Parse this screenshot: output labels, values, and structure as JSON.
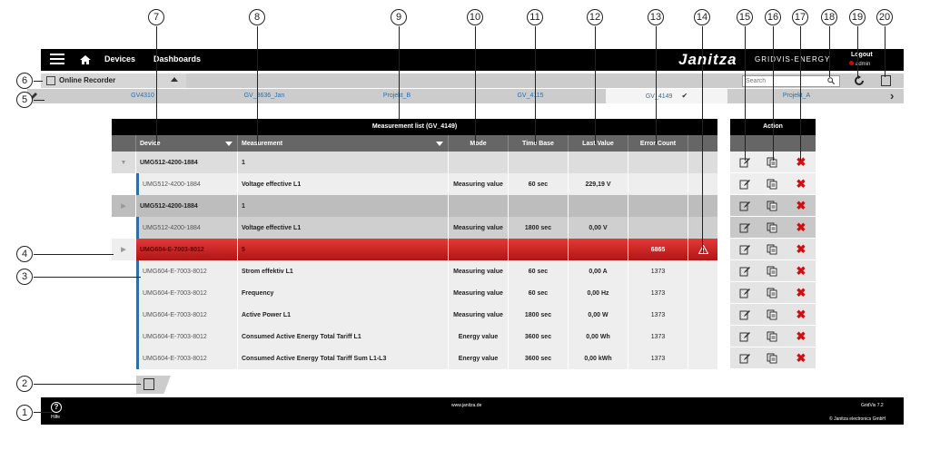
{
  "header": {
    "nav": [
      "Devices",
      "Dashboards"
    ],
    "brand": "Janitza",
    "product": "GRIDVIS-ENERGY",
    "logout": "Logout",
    "user": "admin"
  },
  "recorder": {
    "label": "Online Recorder",
    "search_placeholder": "Search"
  },
  "tabs": {
    "items": [
      "GV4310",
      "GV_3636_Jan",
      "Projekt_B",
      "GV_4115",
      "GV_4149",
      "Projekt_A"
    ],
    "active": "GV_4149"
  },
  "table": {
    "title": "Measurement list  (GV_4149)",
    "columns": {
      "device": "Device",
      "measurement": "Measurement",
      "mode": "Mode",
      "time_base": "Time Base",
      "last_value": "Last Value",
      "error_count": "Error Count"
    },
    "rows": [
      {
        "device": "UMG512-4200-1884",
        "measurement": "1",
        "mode": "",
        "time_base": "",
        "last_value": "",
        "error_count": ""
      },
      {
        "device": "UMG512-4200-1884",
        "measurement": "Voltage effective L1",
        "mode": "Measuring value",
        "time_base": "60 sec",
        "last_value": "229,19 V",
        "error_count": ""
      },
      {
        "device": "UMG512-4200-1884",
        "measurement": "1",
        "mode": "",
        "time_base": "",
        "last_value": "",
        "error_count": ""
      },
      {
        "device": "UMG512-4200-1884",
        "measurement": "Voltage effective L1",
        "mode": "Measuring value",
        "time_base": "1800 sec",
        "last_value": "0,00 V",
        "error_count": ""
      },
      {
        "device": "UMG604-E-7003-8012",
        "measurement": "5",
        "mode": "",
        "time_base": "",
        "last_value": "",
        "error_count": "6865"
      },
      {
        "device": "UMG604-E-7003-8012",
        "measurement": "Strom effektiv L1",
        "mode": "Measuring value",
        "time_base": "60 sec",
        "last_value": "0,00 A",
        "error_count": "1373"
      },
      {
        "device": "UMG604-E-7003-8012",
        "measurement": "Frequency",
        "mode": "Measuring value",
        "time_base": "60 sec",
        "last_value": "0,00 Hz",
        "error_count": "1373"
      },
      {
        "device": "UMG604-E-7003-8012",
        "measurement": "Active Power L1",
        "mode": "Measuring value",
        "time_base": "1800 sec",
        "last_value": "0,00 W",
        "error_count": "1373"
      },
      {
        "device": "UMG604-E-7003-8012",
        "measurement": "Consumed Active Energy Total Tariff L1",
        "mode": "Energy value",
        "time_base": "3600 sec",
        "last_value": "0,00 Wh",
        "error_count": "1373"
      },
      {
        "device": "UMG604-E-7003-8012",
        "measurement": "Consumed Active Energy Total Tariff Sum L1-L3",
        "mode": "Energy value",
        "time_base": "3600 sec",
        "last_value": "0,00 kWh",
        "error_count": "1373"
      }
    ]
  },
  "action": {
    "title": "Action"
  },
  "footer": {
    "help": "Hilfe",
    "url": "www.janitza.de",
    "version": "GridVis 7.2",
    "copyright": "© Janitza electronics GmbH"
  },
  "callouts": [
    "1",
    "2",
    "3",
    "4",
    "5",
    "6",
    "7",
    "8",
    "9",
    "10",
    "11",
    "12",
    "13",
    "14",
    "15",
    "16",
    "17",
    "18",
    "19",
    "20"
  ],
  "colors": {
    "alarm": "#c81e1e",
    "link": "#2e6ea6",
    "delete": "#d01010"
  }
}
